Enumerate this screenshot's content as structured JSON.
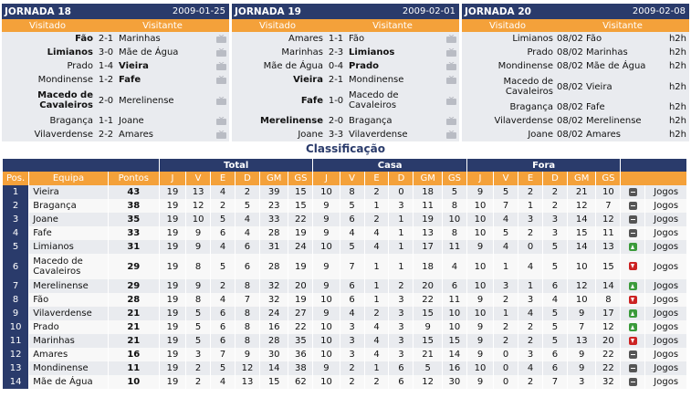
{
  "colors": {
    "header_navy": "#2a3b6b",
    "column_orange": "#f4a13a",
    "row_light": "#e9ebef",
    "trend_up": "#3a9a3a",
    "trend_down": "#cc2222"
  },
  "icons": [
    "tv-icon",
    "trend-equal-icon",
    "trend-up-icon",
    "trend-down-icon"
  ],
  "jornada18": {
    "title": "JORNADA 18",
    "date": "2009-01-25",
    "col_home": "Visitado",
    "col_away": "Visitante",
    "matches": [
      {
        "home": "Fão",
        "score": "2-1",
        "away": "Marinhas",
        "home_bold": true,
        "away_bold": false
      },
      {
        "home": "Limianos",
        "score": "3-0",
        "away": "Mãe de Água",
        "home_bold": true,
        "away_bold": false
      },
      {
        "home": "Prado",
        "score": "1-4",
        "away": "Vieira",
        "home_bold": false,
        "away_bold": true
      },
      {
        "home": "Mondinense",
        "score": "1-2",
        "away": "Fafe",
        "home_bold": false,
        "away_bold": true
      },
      {
        "home": "Macedo de Cavaleiros",
        "score": "2-0",
        "away": "Merelinense",
        "home_bold": true,
        "away_bold": false
      },
      {
        "home": "Bragança",
        "score": "1-1",
        "away": "Joane",
        "home_bold": false,
        "away_bold": false
      },
      {
        "home": "Vilaverdense",
        "score": "2-2",
        "away": "Amares",
        "home_bold": false,
        "away_bold": false
      }
    ]
  },
  "jornada19": {
    "title": "JORNADA 19",
    "date": "2009-02-01",
    "col_home": "Visitado",
    "col_away": "Visitante",
    "matches": [
      {
        "home": "Amares",
        "score": "1-1",
        "away": "Fão",
        "home_bold": false,
        "away_bold": false
      },
      {
        "home": "Marinhas",
        "score": "2-3",
        "away": "Limianos",
        "home_bold": false,
        "away_bold": true
      },
      {
        "home": "Mãe de Água",
        "score": "0-4",
        "away": "Prado",
        "home_bold": false,
        "away_bold": true
      },
      {
        "home": "Vieira",
        "score": "2-1",
        "away": "Mondinense",
        "home_bold": true,
        "away_bold": false
      },
      {
        "home": "Fafe",
        "score": "1-0",
        "away": "Macedo de Cavaleiros",
        "home_bold": true,
        "away_bold": false
      },
      {
        "home": "Merelinense",
        "score": "2-0",
        "away": "Bragança",
        "home_bold": true,
        "away_bold": false
      },
      {
        "home": "Joane",
        "score": "3-3",
        "away": "Vilaverdense",
        "home_bold": false,
        "away_bold": false
      }
    ]
  },
  "jornada20": {
    "title": "JORNADA 20",
    "date": "2009-02-08",
    "col_home": "Visitado",
    "col_away": "Visitante",
    "matches": [
      {
        "home": "Limianos",
        "score": "08/02",
        "away": "Fão",
        "link": "h2h"
      },
      {
        "home": "Prado",
        "score": "08/02",
        "away": "Marinhas",
        "link": "h2h"
      },
      {
        "home": "Mondinense",
        "score": "08/02",
        "away": "Mãe de Água",
        "link": "h2h"
      },
      {
        "home": "Macedo de Cavaleiros",
        "score": "08/02",
        "away": "Vieira",
        "link": "h2h"
      },
      {
        "home": "Bragança",
        "score": "08/02",
        "away": "Fafe",
        "link": "h2h"
      },
      {
        "home": "Vilaverdense",
        "score": "08/02",
        "away": "Merelinense",
        "link": "h2h"
      },
      {
        "home": "Joane",
        "score": "08/02",
        "away": "Amares",
        "link": "h2h"
      }
    ]
  },
  "classification": {
    "title": "Classificação",
    "group_headers": {
      "total": "Total",
      "casa": "Casa",
      "fora": "Fora"
    },
    "columns": [
      "Pos.",
      "Equipa",
      "Pontos",
      "J",
      "V",
      "E",
      "D",
      "GM",
      "GS",
      "J",
      "V",
      "E",
      "D",
      "GM",
      "GS",
      "J",
      "V",
      "E",
      "D",
      "GM",
      "GS"
    ],
    "rows": [
      {
        "pos": "1",
        "team": "Vieira",
        "pts": "43",
        "total": [
          "19",
          "13",
          "4",
          "2",
          "39",
          "15"
        ],
        "casa": [
          "10",
          "8",
          "2",
          "0",
          "18",
          "5"
        ],
        "fora": [
          "9",
          "5",
          "2",
          "2",
          "21",
          "10"
        ],
        "trend": "equal",
        "link": "Jogos"
      },
      {
        "pos": "2",
        "team": "Bragança",
        "pts": "38",
        "total": [
          "19",
          "12",
          "2",
          "5",
          "23",
          "15"
        ],
        "casa": [
          "9",
          "5",
          "1",
          "3",
          "11",
          "8"
        ],
        "fora": [
          "10",
          "7",
          "1",
          "2",
          "12",
          "7"
        ],
        "trend": "equal",
        "link": "Jogos"
      },
      {
        "pos": "3",
        "team": "Joane",
        "pts": "35",
        "total": [
          "19",
          "10",
          "5",
          "4",
          "33",
          "22"
        ],
        "casa": [
          "9",
          "6",
          "2",
          "1",
          "19",
          "10"
        ],
        "fora": [
          "10",
          "4",
          "3",
          "3",
          "14",
          "12"
        ],
        "trend": "equal",
        "link": "Jogos"
      },
      {
        "pos": "4",
        "team": "Fafe",
        "pts": "33",
        "total": [
          "19",
          "9",
          "6",
          "4",
          "28",
          "19"
        ],
        "casa": [
          "9",
          "4",
          "4",
          "1",
          "13",
          "8"
        ],
        "fora": [
          "10",
          "5",
          "2",
          "3",
          "15",
          "11"
        ],
        "trend": "equal",
        "link": "Jogos"
      },
      {
        "pos": "5",
        "team": "Limianos",
        "pts": "31",
        "total": [
          "19",
          "9",
          "4",
          "6",
          "31",
          "24"
        ],
        "casa": [
          "10",
          "5",
          "4",
          "1",
          "17",
          "11"
        ],
        "fora": [
          "9",
          "4",
          "0",
          "5",
          "14",
          "13"
        ],
        "trend": "up",
        "link": "Jogos"
      },
      {
        "pos": "6",
        "team": "Macedo de Cavaleiros",
        "pts": "29",
        "total": [
          "19",
          "8",
          "5",
          "6",
          "28",
          "19"
        ],
        "casa": [
          "9",
          "7",
          "1",
          "1",
          "18",
          "4"
        ],
        "fora": [
          "10",
          "1",
          "4",
          "5",
          "10",
          "15"
        ],
        "trend": "down",
        "link": "Jogos"
      },
      {
        "pos": "7",
        "team": "Merelinense",
        "pts": "29",
        "total": [
          "19",
          "9",
          "2",
          "8",
          "32",
          "20"
        ],
        "casa": [
          "9",
          "6",
          "1",
          "2",
          "20",
          "6"
        ],
        "fora": [
          "10",
          "3",
          "1",
          "6",
          "12",
          "14"
        ],
        "trend": "up",
        "link": "Jogos"
      },
      {
        "pos": "8",
        "team": "Fão",
        "pts": "28",
        "total": [
          "19",
          "8",
          "4",
          "7",
          "32",
          "19"
        ],
        "casa": [
          "10",
          "6",
          "1",
          "3",
          "22",
          "11"
        ],
        "fora": [
          "9",
          "2",
          "3",
          "4",
          "10",
          "8"
        ],
        "trend": "down",
        "link": "Jogos"
      },
      {
        "pos": "9",
        "team": "Vilaverdense",
        "pts": "21",
        "total": [
          "19",
          "5",
          "6",
          "8",
          "24",
          "27"
        ],
        "casa": [
          "9",
          "4",
          "2",
          "3",
          "15",
          "10"
        ],
        "fora": [
          "10",
          "1",
          "4",
          "5",
          "9",
          "17"
        ],
        "trend": "up",
        "link": "Jogos"
      },
      {
        "pos": "10",
        "team": "Prado",
        "pts": "21",
        "total": [
          "19",
          "5",
          "6",
          "8",
          "16",
          "22"
        ],
        "casa": [
          "10",
          "3",
          "4",
          "3",
          "9",
          "10"
        ],
        "fora": [
          "9",
          "2",
          "2",
          "5",
          "7",
          "12"
        ],
        "trend": "up",
        "link": "Jogos"
      },
      {
        "pos": "11",
        "team": "Marinhas",
        "pts": "21",
        "total": [
          "19",
          "5",
          "6",
          "8",
          "28",
          "35"
        ],
        "casa": [
          "10",
          "3",
          "4",
          "3",
          "15",
          "15"
        ],
        "fora": [
          "9",
          "2",
          "2",
          "5",
          "13",
          "20"
        ],
        "trend": "down",
        "link": "Jogos"
      },
      {
        "pos": "12",
        "team": "Amares",
        "pts": "16",
        "total": [
          "19",
          "3",
          "7",
          "9",
          "30",
          "36"
        ],
        "casa": [
          "10",
          "3",
          "4",
          "3",
          "21",
          "14"
        ],
        "fora": [
          "9",
          "0",
          "3",
          "6",
          "9",
          "22"
        ],
        "trend": "equal",
        "link": "Jogos"
      },
      {
        "pos": "13",
        "team": "Mondinense",
        "pts": "11",
        "total": [
          "19",
          "2",
          "5",
          "12",
          "14",
          "38"
        ],
        "casa": [
          "9",
          "2",
          "1",
          "6",
          "5",
          "16"
        ],
        "fora": [
          "10",
          "0",
          "4",
          "6",
          "9",
          "22"
        ],
        "trend": "equal",
        "link": "Jogos"
      },
      {
        "pos": "14",
        "team": "Mãe de Água",
        "pts": "10",
        "total": [
          "19",
          "2",
          "4",
          "13",
          "15",
          "62"
        ],
        "casa": [
          "10",
          "2",
          "2",
          "6",
          "12",
          "30"
        ],
        "fora": [
          "9",
          "0",
          "2",
          "7",
          "3",
          "32"
        ],
        "trend": "equal",
        "link": "Jogos"
      }
    ]
  }
}
